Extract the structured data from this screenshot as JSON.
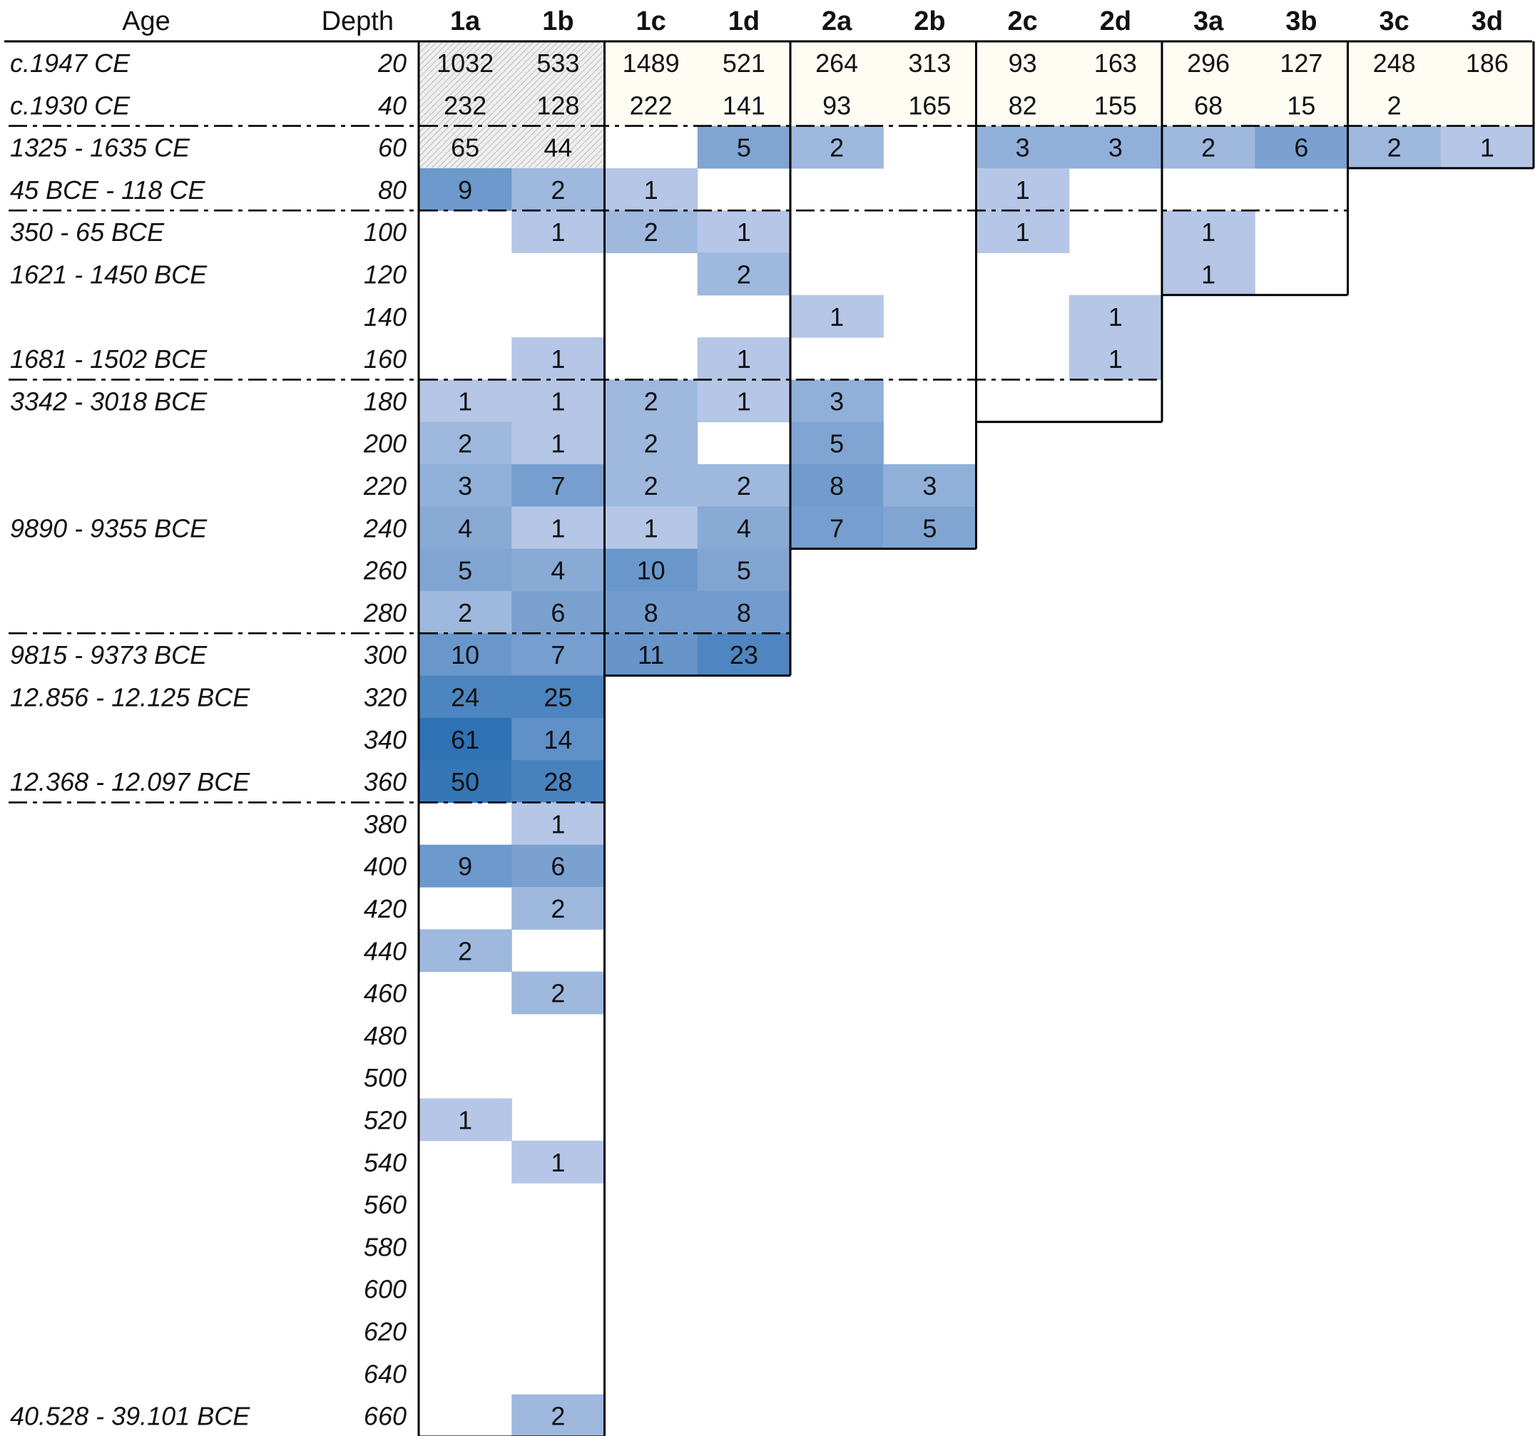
{
  "chart_data": {
    "type": "heatmap",
    "title": "",
    "xlabel": "",
    "ylabel": "",
    "header": {
      "age": "Age",
      "depth": "Depth"
    },
    "columns": [
      "1a",
      "1b",
      "1c",
      "1d",
      "2a",
      "2b",
      "2c",
      "2d",
      "3a",
      "3b",
      "3c",
      "3d"
    ],
    "groups": [
      {
        "columns": [
          "1a",
          "1b",
          "1c",
          "1d"
        ]
      },
      {
        "columns": [
          "2a",
          "2b",
          "2c",
          "2d"
        ]
      },
      {
        "columns": [
          "3a",
          "3b",
          "3c",
          "3d"
        ]
      }
    ],
    "rows": [
      {
        "depth": "20",
        "age": "c.1947 CE",
        "values": [
          1032,
          533,
          1489,
          521,
          264,
          313,
          93,
          163,
          296,
          127,
          248,
          186
        ]
      },
      {
        "depth": "40",
        "age": "c.1930 CE",
        "values": [
          232,
          128,
          222,
          141,
          93,
          165,
          82,
          155,
          68,
          15,
          2,
          null
        ]
      },
      {
        "depth": "60",
        "age": "1325 - 1635 CE",
        "values": [
          65,
          44,
          null,
          5,
          2,
          null,
          3,
          3,
          2,
          6,
          2,
          1
        ]
      },
      {
        "depth": "80",
        "age": "45 BCE - 118 CE",
        "values": [
          9,
          2,
          1,
          null,
          null,
          null,
          1,
          null,
          null,
          null,
          null,
          null
        ]
      },
      {
        "depth": "100",
        "age": "350 - 65 BCE",
        "values": [
          null,
          1,
          2,
          1,
          null,
          null,
          1,
          null,
          1,
          null,
          null,
          null
        ]
      },
      {
        "depth": "120",
        "age": "1621 - 1450 BCE",
        "values": [
          null,
          null,
          null,
          2,
          null,
          null,
          null,
          null,
          1,
          null,
          null,
          null
        ]
      },
      {
        "depth": "140",
        "age": "",
        "values": [
          null,
          null,
          null,
          null,
          1,
          null,
          null,
          1,
          null,
          null,
          null,
          null
        ]
      },
      {
        "depth": "160",
        "age": "1681 - 1502 BCE",
        "values": [
          null,
          1,
          null,
          1,
          null,
          null,
          null,
          1,
          null,
          null,
          null,
          null
        ]
      },
      {
        "depth": "180",
        "age": "3342 - 3018 BCE",
        "values": [
          1,
          1,
          2,
          1,
          3,
          null,
          null,
          null,
          null,
          null,
          null,
          null
        ]
      },
      {
        "depth": "200",
        "age": "",
        "values": [
          2,
          1,
          2,
          null,
          5,
          null,
          null,
          null,
          null,
          null,
          null,
          null
        ]
      },
      {
        "depth": "220",
        "age": "",
        "values": [
          3,
          7,
          2,
          2,
          8,
          3,
          null,
          null,
          null,
          null,
          null,
          null
        ]
      },
      {
        "depth": "240",
        "age": "9890 - 9355 BCE",
        "values": [
          4,
          1,
          1,
          4,
          7,
          5,
          null,
          null,
          null,
          null,
          null,
          null
        ]
      },
      {
        "depth": "260",
        "age": "",
        "values": [
          5,
          4,
          10,
          5,
          null,
          null,
          null,
          null,
          null,
          null,
          null,
          null
        ]
      },
      {
        "depth": "280",
        "age": "",
        "values": [
          2,
          6,
          8,
          8,
          null,
          null,
          null,
          null,
          null,
          null,
          null,
          null
        ]
      },
      {
        "depth": "300",
        "age": "9815 - 9373 BCE",
        "values": [
          10,
          7,
          11,
          23,
          null,
          null,
          null,
          null,
          null,
          null,
          null,
          null
        ]
      },
      {
        "depth": "320",
        "age": "12.856 - 12.125 BCE",
        "values": [
          24,
          25,
          null,
          null,
          null,
          null,
          null,
          null,
          null,
          null,
          null,
          null
        ]
      },
      {
        "depth": "340",
        "age": "",
        "values": [
          61,
          14,
          null,
          null,
          null,
          null,
          null,
          null,
          null,
          null,
          null,
          null
        ]
      },
      {
        "depth": "360",
        "age": "12.368 - 12.097 BCE",
        "values": [
          50,
          28,
          null,
          null,
          null,
          null,
          null,
          null,
          null,
          null,
          null,
          null
        ]
      },
      {
        "depth": "380",
        "age": "",
        "values": [
          null,
          1,
          null,
          null,
          null,
          null,
          null,
          null,
          null,
          null,
          null,
          null
        ]
      },
      {
        "depth": "400",
        "age": "",
        "values": [
          9,
          6,
          null,
          null,
          null,
          null,
          null,
          null,
          null,
          null,
          null,
          null
        ]
      },
      {
        "depth": "420",
        "age": "",
        "values": [
          null,
          2,
          null,
          null,
          null,
          null,
          null,
          null,
          null,
          null,
          null,
          null
        ]
      },
      {
        "depth": "440",
        "age": "",
        "values": [
          2,
          null,
          null,
          null,
          null,
          null,
          null,
          null,
          null,
          null,
          null,
          null
        ]
      },
      {
        "depth": "460",
        "age": "",
        "values": [
          null,
          2,
          null,
          null,
          null,
          null,
          null,
          null,
          null,
          null,
          null,
          null
        ]
      },
      {
        "depth": "480",
        "age": "",
        "values": [
          null,
          null,
          null,
          null,
          null,
          null,
          null,
          null,
          null,
          null,
          null,
          null
        ]
      },
      {
        "depth": "500",
        "age": "",
        "values": [
          null,
          null,
          null,
          null,
          null,
          null,
          null,
          null,
          null,
          null,
          null,
          null
        ]
      },
      {
        "depth": "520",
        "age": "",
        "values": [
          1,
          null,
          null,
          null,
          null,
          null,
          null,
          null,
          null,
          null,
          null,
          null
        ]
      },
      {
        "depth": "540",
        "age": "",
        "values": [
          null,
          1,
          null,
          null,
          null,
          null,
          null,
          null,
          null,
          null,
          null,
          null
        ]
      },
      {
        "depth": "560",
        "age": "",
        "values": [
          null,
          null,
          null,
          null,
          null,
          null,
          null,
          null,
          null,
          null,
          null,
          null
        ]
      },
      {
        "depth": "580",
        "age": "",
        "values": [
          null,
          null,
          null,
          null,
          null,
          null,
          null,
          null,
          null,
          null,
          null,
          null
        ]
      },
      {
        "depth": "600",
        "age": "",
        "values": [
          null,
          null,
          null,
          null,
          null,
          null,
          null,
          null,
          null,
          null,
          null,
          null
        ]
      },
      {
        "depth": "620",
        "age": "",
        "values": [
          null,
          null,
          null,
          null,
          null,
          null,
          null,
          null,
          null,
          null,
          null,
          null
        ]
      },
      {
        "depth": "640",
        "age": "",
        "values": [
          null,
          null,
          null,
          null,
          null,
          null,
          null,
          null,
          null,
          null,
          null,
          null
        ]
      },
      {
        "depth": "660",
        "age": "40.528 - 39.101 BCE",
        "values": [
          null,
          2,
          null,
          null,
          null,
          null,
          null,
          null,
          null,
          null,
          null,
          null
        ]
      }
    ],
    "core_extent": {
      "1a": "660",
      "1b": "660",
      "1c": "300",
      "1d": "300",
      "2a": "240",
      "2b": "240",
      "2c": "180",
      "2d": "180",
      "3a": "120",
      "3b": "120",
      "3c": "60",
      "3d": "60"
    },
    "unsorted_levels": {
      "depths": [
        "20",
        "40"
      ],
      "hatched_columns": [
        "1a",
        "1b"
      ],
      "also_hatched_at": {
        "depth": "60",
        "columns": [
          "1a",
          "1b"
        ]
      }
    },
    "horizon_boundaries_after_depth": [
      "40",
      "80",
      "160",
      "280",
      "360"
    ],
    "color_scale": {
      "low": "#b5c6e6",
      "high": "#2f72b5",
      "unshaded": "#fffdf3",
      "hatched": "#ececec"
    },
    "grid": false,
    "legend": "none"
  }
}
